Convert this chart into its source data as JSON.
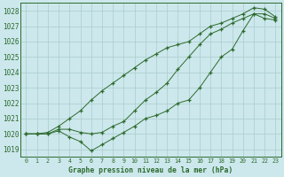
{
  "title": "Graphe pression niveau de la mer (hPa)",
  "bg_color": "#cce8ec",
  "grid_color": "#aacccc",
  "line_color": "#2d6a2d",
  "ylim": [
    1018.5,
    1028.5
  ],
  "yticks": [
    1019,
    1020,
    1021,
    1022,
    1023,
    1024,
    1025,
    1026,
    1027,
    1028
  ],
  "x_labels": [
    "0",
    "1",
    "2",
    "3",
    "4",
    "5",
    "6",
    "7",
    "8",
    "9",
    "10",
    "11",
    "12",
    "13",
    "14",
    "15",
    "16",
    "17",
    "18",
    "19",
    "20",
    "21",
    "22",
    "23"
  ],
  "line_low": [
    1020.0,
    1020.0,
    1020.0,
    1020.2,
    1019.8,
    1019.5,
    1018.9,
    1019.3,
    1019.7,
    1020.1,
    1020.5,
    1021.0,
    1021.2,
    1021.5,
    1022.0,
    1022.2,
    1023.0,
    1024.0,
    1025.0,
    1025.5,
    1026.7,
    1027.8,
    1027.8,
    1027.5
  ],
  "line_mid": [
    1020.0,
    1020.0,
    1020.0,
    1020.3,
    1020.3,
    1020.1,
    1020.0,
    1020.1,
    1020.5,
    1020.8,
    1021.5,
    1022.2,
    1022.7,
    1023.3,
    1024.2,
    1025.0,
    1025.8,
    1026.5,
    1026.8,
    1027.2,
    1027.5,
    1027.8,
    1027.5,
    1027.4
  ],
  "line_high": [
    1020.0,
    1020.0,
    1020.1,
    1020.5,
    1021.0,
    1021.5,
    1022.2,
    1022.8,
    1023.3,
    1023.8,
    1024.3,
    1024.8,
    1025.2,
    1025.6,
    1025.8,
    1026.0,
    1026.5,
    1027.0,
    1027.2,
    1027.5,
    1027.8,
    1028.2,
    1028.1,
    1027.6
  ]
}
